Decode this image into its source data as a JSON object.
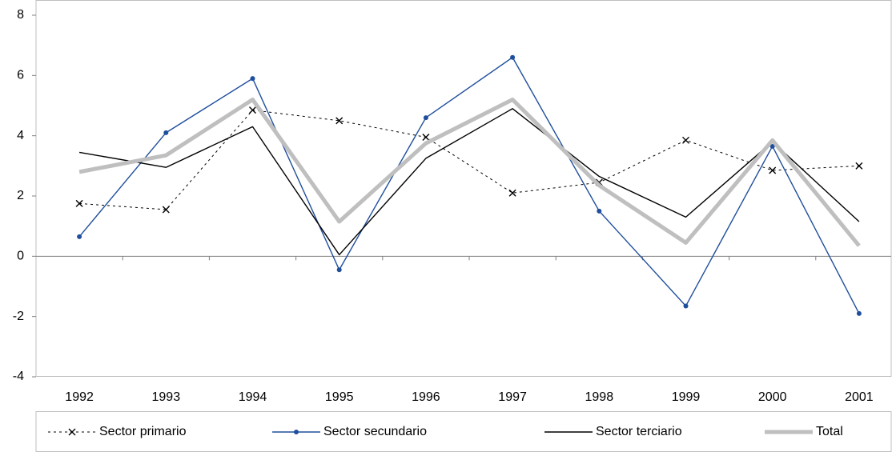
{
  "chart_data": {
    "type": "line",
    "categories": [
      "1992",
      "1993",
      "1994",
      "1995",
      "1996",
      "1997",
      "1998",
      "1999",
      "2000",
      "2001"
    ],
    "series": [
      {
        "name": "Sector primario",
        "color": "#000000",
        "dash": true,
        "marker": "x",
        "width": 1,
        "values": [
          1.75,
          1.55,
          4.85,
          4.5,
          3.95,
          2.1,
          2.45,
          3.85,
          2.85,
          3.0
        ]
      },
      {
        "name": "Sector secundario",
        "color": "#1f4e9c",
        "dash": false,
        "marker": "dot",
        "width": 1.4,
        "values": [
          0.65,
          4.1,
          5.9,
          -0.45,
          4.6,
          6.6,
          1.5,
          -1.65,
          3.65,
          -1.9
        ]
      },
      {
        "name": "Sector terciario",
        "color": "#000000",
        "dash": false,
        "marker": "none",
        "width": 1.4,
        "values": [
          3.45,
          2.95,
          4.3,
          0.05,
          3.25,
          4.9,
          2.65,
          1.3,
          3.8,
          1.15
        ]
      },
      {
        "name": "Total",
        "color": "#bfbfbf",
        "dash": false,
        "marker": "none",
        "width": 5,
        "values": [
          2.8,
          3.35,
          5.2,
          1.15,
          3.75,
          5.2,
          2.35,
          0.45,
          3.85,
          0.35
        ]
      }
    ],
    "ylim": [
      -4,
      8
    ],
    "yticks": [
      -4,
      -2,
      0,
      2,
      4,
      6,
      8
    ],
    "legend": "bottom"
  }
}
